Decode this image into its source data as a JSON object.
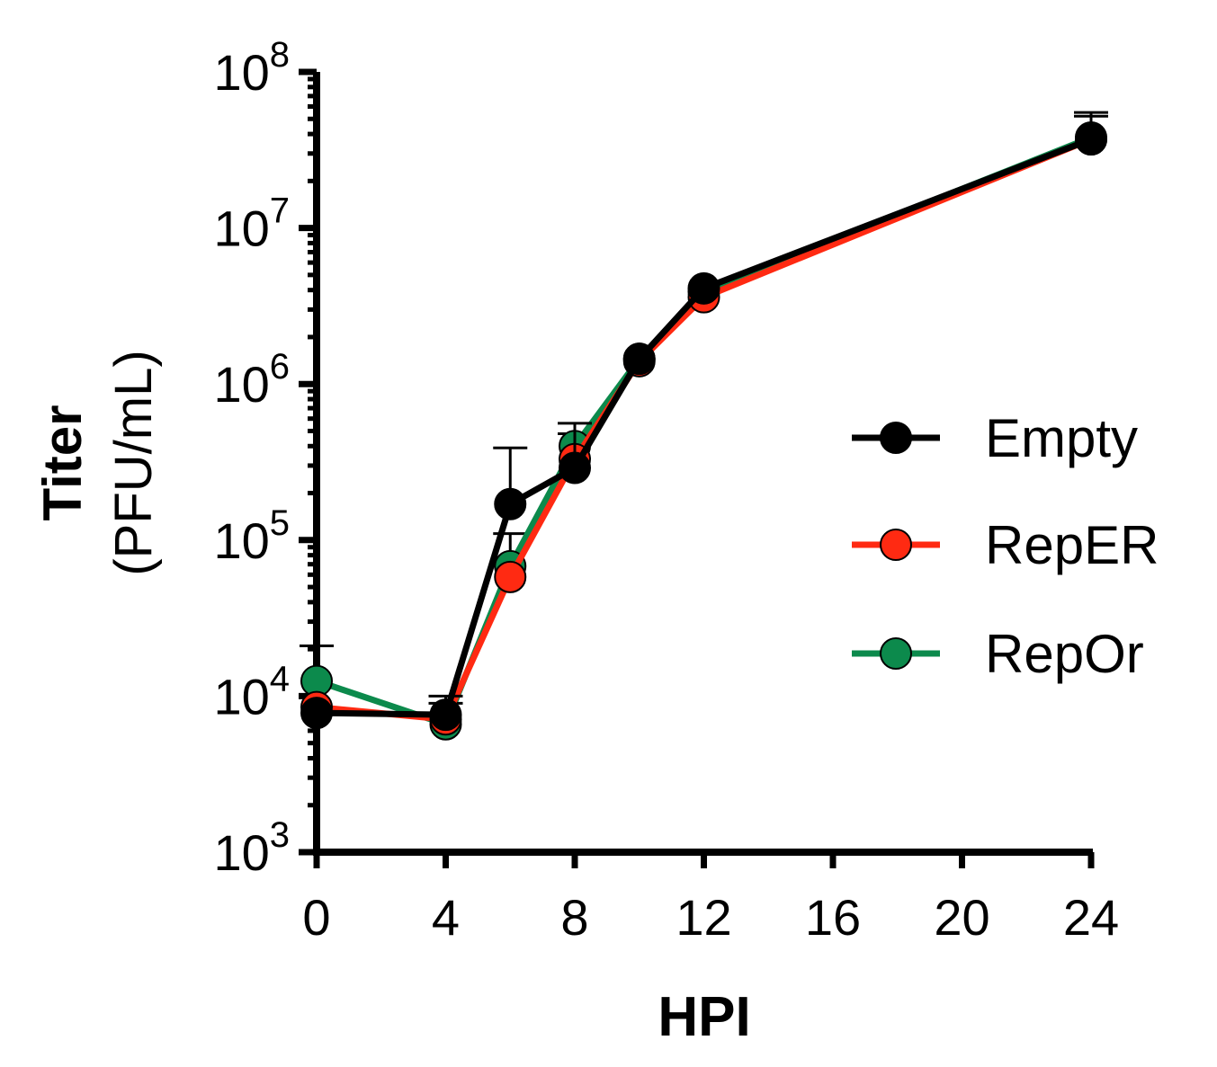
{
  "chart_data": {
    "type": "line",
    "xlabel": "HPI",
    "ylabel_main": "Titer",
    "ylabel_unit": "(PFU/mL)",
    "y_scale": "log10",
    "ylim": [
      1000,
      100000000
    ],
    "xlim": [
      0,
      24
    ],
    "x_ticks": [
      0,
      4,
      8,
      12,
      16,
      20,
      24
    ],
    "x_tick_labels": [
      "0",
      "4",
      "8",
      "12",
      "16",
      "20",
      "24"
    ],
    "y_ticks": [
      {
        "value": 1000,
        "base": "10",
        "exp": "3"
      },
      {
        "value": 10000,
        "base": "10",
        "exp": "4"
      },
      {
        "value": 100000,
        "base": "10",
        "exp": "5"
      },
      {
        "value": 1000000,
        "base": "10",
        "exp": "6"
      },
      {
        "value": 10000000,
        "base": "10",
        "exp": "7"
      },
      {
        "value": 100000000,
        "base": "10",
        "exp": "8"
      }
    ],
    "x": [
      0,
      4,
      6,
      8,
      10,
      12,
      24
    ],
    "legend_position": "right",
    "series": [
      {
        "name": "RepOr",
        "color": "#0c8a4c",
        "values": [
          12500,
          6600,
          68000,
          400000,
          1450000,
          3900000,
          38000000
        ],
        "error_upper": [
          21000,
          null,
          110000,
          480000,
          null,
          null,
          null
        ]
      },
      {
        "name": "RepER",
        "color": "#ff2a12",
        "values": [
          8500,
          7100,
          58000,
          330000,
          1400000,
          3600000,
          37000000
        ],
        "error_upper": [
          null,
          9000,
          null,
          null,
          null,
          null,
          52000000
        ]
      },
      {
        "name": "Empty",
        "color": "#000000",
        "values": [
          7800,
          7600,
          170000,
          290000,
          1450000,
          4100000,
          37000000
        ],
        "error_upper": [
          null,
          10000,
          390000,
          560000,
          null,
          null,
          55000000
        ]
      }
    ],
    "legend_order": [
      "Empty",
      "RepER",
      "RepOr"
    ]
  }
}
